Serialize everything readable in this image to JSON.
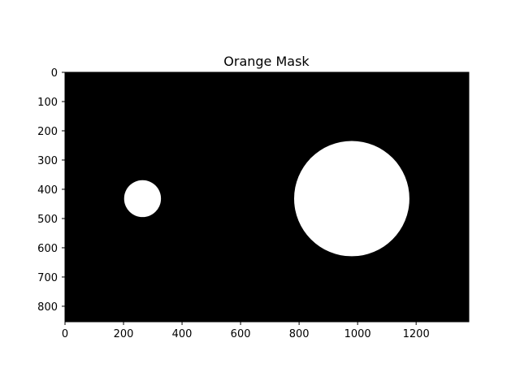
{
  "chart_data": {
    "type": "heatmap",
    "title": "Orange Mask",
    "xlabel": "",
    "ylabel": "",
    "image_width": 1380,
    "image_height": 853,
    "xlim": [
      0,
      1380
    ],
    "ylim": [
      853,
      0
    ],
    "x_ticks": [
      0,
      200,
      400,
      600,
      800,
      1000,
      1200
    ],
    "y_ticks": [
      0,
      100,
      200,
      300,
      400,
      500,
      600,
      700,
      800
    ],
    "background_color": "#000000",
    "mask_color": "#ffffff",
    "regions": [
      {
        "shape": "circle",
        "cx": 265,
        "cy": 432,
        "r": 63
      },
      {
        "shape": "circle",
        "cx": 980,
        "cy": 432,
        "r": 197
      }
    ]
  }
}
